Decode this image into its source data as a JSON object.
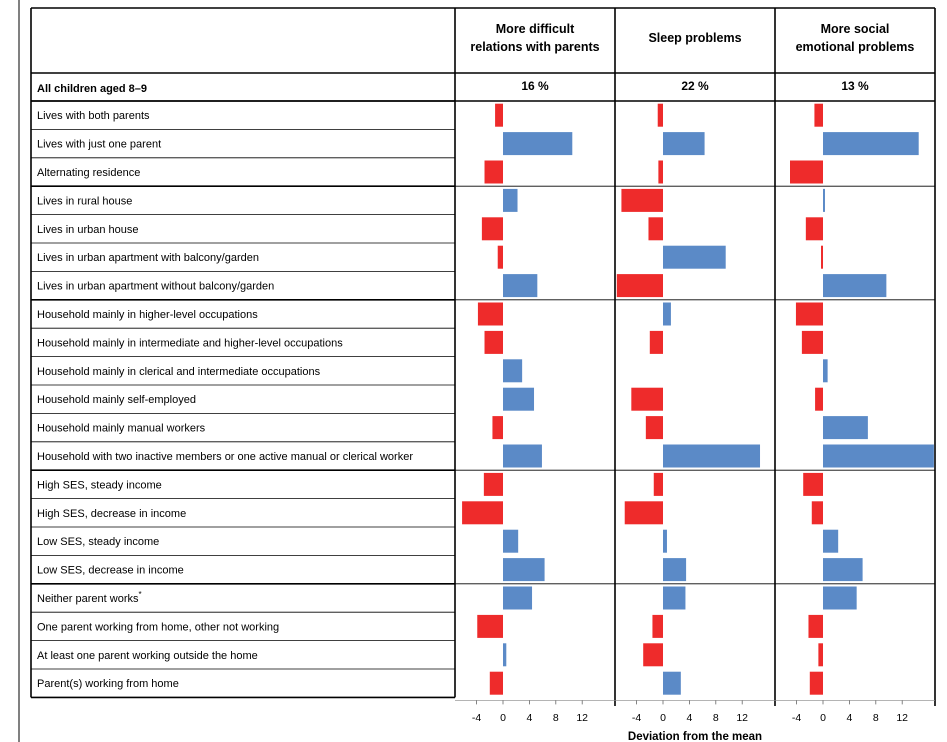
{
  "chart_data": {
    "type": "bar",
    "orientation": "horizontal",
    "header_left": "All children aged 8–9",
    "categories": [
      "Lives with both parents",
      "Lives with just one parent",
      "Alternating residence",
      "Lives in rural house",
      "Lives in urban house",
      "Lives in urban apartment with balcony/garden",
      "Lives in urban apartment without balcony/garden",
      "Household mainly in higher-level occupations",
      "Household mainly in intermediate and higher-level occupations",
      "Household mainly in clerical and intermediate occupations",
      "Household mainly self-employed",
      "Household mainly manual workers",
      "Household with two inactive members or one active manual or clerical worker",
      "High SES, steady income",
      "High SES, decrease in income",
      "Low SES, steady income",
      "Low SES, decrease in income",
      "Neither parent works",
      "One parent working from home, other not working",
      "At least one parent working outside the home",
      "Parent(s) working from home"
    ],
    "category_superscripts": [
      "",
      "",
      "",
      "",
      "",
      "",
      "",
      "",
      "",
      "",
      "",
      "",
      "",
      "",
      "",
      "",
      "",
      "*",
      "",
      "",
      ""
    ],
    "group_breaks_after": [
      2,
      6,
      12,
      16
    ],
    "series": [
      {
        "title_lines": [
          "More difficult",
          "relations with parents"
        ],
        "overall": "16 %",
        "values": [
          -1.2,
          10.5,
          -2.8,
          2.2,
          -3.2,
          -0.8,
          5.2,
          -3.8,
          -2.8,
          2.9,
          4.7,
          -1.6,
          5.9,
          -2.9,
          -6.2,
          2.3,
          6.3,
          4.4,
          -3.9,
          0.5,
          -2.0
        ]
      },
      {
        "title_lines": [
          "Sleep problems"
        ],
        "overall": "22 %",
        "values": [
          -0.8,
          6.3,
          -0.7,
          -6.3,
          -2.2,
          9.5,
          -7.0,
          1.2,
          -2.0,
          0.0,
          -4.8,
          -2.6,
          14.7,
          -1.4,
          -5.8,
          0.6,
          3.5,
          3.4,
          -1.6,
          -3.0,
          2.7
        ]
      },
      {
        "title_lines": [
          "More social",
          "emotional problems"
        ],
        "overall": "13 %",
        "values": [
          -1.3,
          14.5,
          -5.0,
          0.3,
          -2.6,
          -0.3,
          9.6,
          -4.1,
          -3.2,
          0.7,
          -1.2,
          6.8,
          16.8,
          -3.0,
          -1.7,
          2.3,
          6.0,
          5.1,
          -2.2,
          -0.7,
          -2.0
        ]
      }
    ],
    "x_ticks": [
      "-4",
      "0",
      "4",
      "8",
      "12"
    ],
    "xlim": [
      -6,
      17
    ],
    "xlabel": "Deviation from the mean",
    "colors": {
      "positive": "#5b8ac7",
      "negative": "#ee2b2b"
    }
  }
}
